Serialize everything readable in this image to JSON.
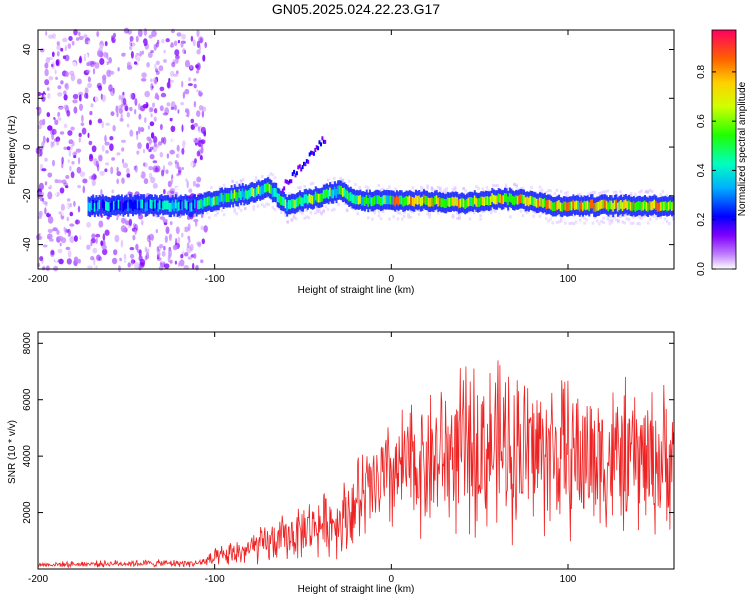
{
  "title": "GN05.2025.024.22.23.G17",
  "chart_data": [
    {
      "type": "heatmap",
      "xlabel": "Height of straight line (km)",
      "ylabel": "Frequency (Hz)",
      "xlim": [
        -200,
        160
      ],
      "ylim": [
        -50,
        48
      ],
      "xticks": [
        -200,
        -100,
        0,
        100
      ],
      "yticks": [
        -40,
        -20,
        0,
        20,
        40
      ],
      "colorbar": {
        "label": "Normalized spectral amplitude",
        "range": [
          0,
          0.97
        ],
        "ticks": [
          "0.0",
          "0.2",
          "0.4",
          "0.6",
          "0.8"
        ],
        "colors": [
          "#ffffff",
          "#a000ff",
          "#0000ff",
          "#00d0ff",
          "#00ff40",
          "#ffff00",
          "#ff8000",
          "#ff0050"
        ]
      },
      "ridge": {
        "x": [
          -170,
          -160,
          -150,
          -140,
          -130,
          -120,
          -110,
          -100,
          -90,
          -80,
          -70,
          -60,
          -50,
          -40,
          -30,
          -20,
          -10,
          0,
          20,
          40,
          60,
          80,
          90,
          100,
          120,
          140,
          160
        ],
        "y": [
          -24,
          -24,
          -24,
          -24,
          -24,
          -24,
          -24,
          -22,
          -20,
          -19,
          -16,
          -24,
          -22,
          -20,
          -18,
          -22,
          -22,
          -22,
          -22,
          -23,
          -21,
          -22,
          -24,
          -24,
          -24,
          -24,
          -24
        ]
      },
      "noise_region_x": [
        -200,
        -105
      ]
    },
    {
      "type": "line",
      "xlabel": "Height of straight line (km)",
      "ylabel": "SNR (10 * v/v)",
      "xlim": [
        -200,
        160
      ],
      "ylim": [
        0,
        8400
      ],
      "xticks": [
        -200,
        -100,
        0,
        100
      ],
      "yticks": [
        2000,
        4000,
        6000,
        8000
      ],
      "color": "#ee2222",
      "envelope": {
        "x": [
          -200,
          -150,
          -110,
          -100,
          -80,
          -60,
          -45,
          -30,
          -20,
          -10,
          0,
          10,
          20,
          30,
          40,
          50,
          60,
          70,
          80,
          100,
          120,
          140,
          160
        ],
        "mean": [
          150,
          200,
          200,
          350,
          700,
          1100,
          1500,
          1700,
          2300,
          2800,
          3300,
          3600,
          3800,
          4000,
          4200,
          4300,
          4300,
          4300,
          4200,
          4000,
          3900,
          3900,
          3800
        ],
        "amp": [
          100,
          150,
          150,
          400,
          700,
          1000,
          1200,
          1400,
          2000,
          2200,
          2500,
          2700,
          3000,
          3200,
          3400,
          3600,
          3600,
          3600,
          3500,
          3300,
          3200,
          3100,
          3000
        ]
      }
    }
  ]
}
